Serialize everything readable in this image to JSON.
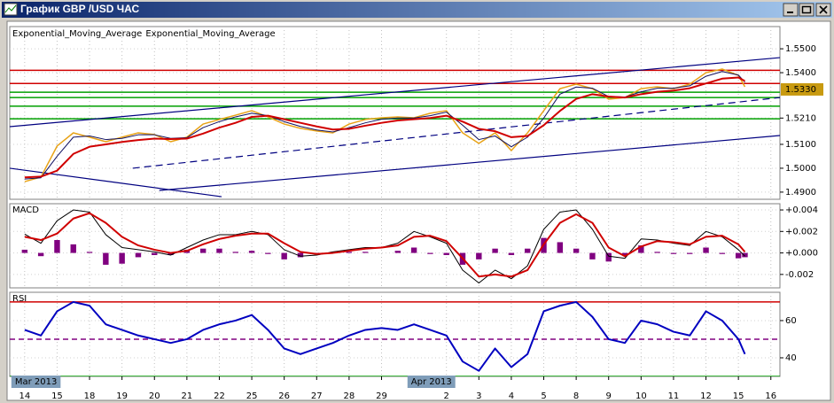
{
  "window": {
    "title": "График GBP /USD ЧАС"
  },
  "chart_data": [
    {
      "type": "line",
      "xlim": [
        -0.46,
        23.28
      ],
      "ylim": [
        1.487,
        1.5593
      ],
      "yticks": [
        {
          "value": 1.55,
          "label": "1.5500"
        },
        {
          "value": 1.54,
          "label": "1.5400"
        },
        {
          "value": 1.521,
          "label": "1.5210"
        },
        {
          "value": 1.51,
          "label": "1.5100"
        },
        {
          "value": 1.5,
          "label": "1.5000"
        },
        {
          "value": 1.49,
          "label": "1.4900"
        }
      ],
      "grid": true,
      "current_price": {
        "value": 1.533,
        "label": "1.5330",
        "color": "#c89a10"
      },
      "levels": [
        {
          "value": 1.541,
          "color": "#d00000"
        },
        {
          "value": 1.5355,
          "color": "#d00000"
        },
        {
          "value": 1.5318,
          "color": "#00a000"
        },
        {
          "value": 1.5296,
          "color": "#00a000"
        },
        {
          "value": 1.526,
          "color": "#00a000"
        },
        {
          "value": 1.5207,
          "color": "#00a000"
        }
      ],
      "trendlines": [
        {
          "x": [
            -0.46,
            23.28
          ],
          "y": [
            1.5174,
            1.5463
          ],
          "color": "#000080"
        },
        {
          "x": [
            4.15,
            23.28
          ],
          "y": [
            1.4907,
            1.5137
          ],
          "color": "#000080"
        },
        {
          "x": [
            -0.46,
            6.07
          ],
          "y": [
            1.5,
            1.4881
          ],
          "color": "#000080"
        },
        {
          "x": [
            3.33,
            23.28
          ],
          "y": [
            1.5,
            1.5296
          ],
          "color": "#000080",
          "dash": true
        }
      ],
      "x": [
        0,
        0.5,
        1,
        1.5,
        2,
        2.5,
        3,
        3.5,
        4,
        4.5,
        5,
        5.5,
        6,
        6.5,
        7,
        7.5,
        8,
        8.5,
        9,
        9.5,
        10,
        10.5,
        11,
        11.5,
        12,
        12.5,
        13,
        13.5,
        14,
        14.5,
        15,
        15.5,
        16,
        16.5,
        17,
        17.5,
        18,
        18.5,
        19,
        19.5,
        20,
        20.5,
        21,
        21.5,
        22,
        22.2
      ],
      "series": [
        {
          "color": "#e8a317",
          "width": 1.5,
          "values": [
            1.4944,
            1.4963,
            1.5093,
            1.5148,
            1.513,
            1.5111,
            1.513,
            1.5148,
            1.5141,
            1.5111,
            1.513,
            1.5185,
            1.5204,
            1.5222,
            1.5241,
            1.5215,
            1.5185,
            1.5167,
            1.5156,
            1.5148,
            1.5185,
            1.5204,
            1.5211,
            1.5215,
            1.5211,
            1.523,
            1.5241,
            1.5148,
            1.5104,
            1.5148,
            1.5074,
            1.5148,
            1.5241,
            1.5333,
            1.5352,
            1.5333,
            1.5289,
            1.5296,
            1.5333,
            1.5341,
            1.5333,
            1.5352,
            1.54,
            1.5415,
            1.5389,
            1.5341
          ]
        },
        {
          "name": "Exponential_Moving_Average",
          "color": "#101060",
          "width": 1,
          "values": [
            1.4955,
            1.496,
            1.505,
            1.513,
            1.5135,
            1.512,
            1.5125,
            1.514,
            1.514,
            1.5125,
            1.5128,
            1.517,
            1.5195,
            1.5215,
            1.523,
            1.522,
            1.5195,
            1.5175,
            1.516,
            1.5152,
            1.517,
            1.519,
            1.5205,
            1.521,
            1.521,
            1.522,
            1.5235,
            1.518,
            1.512,
            1.5135,
            1.509,
            1.513,
            1.521,
            1.531,
            1.534,
            1.5335,
            1.53,
            1.5298,
            1.532,
            1.5335,
            1.5335,
            1.5345,
            1.5385,
            1.5405,
            1.539,
            1.536
          ]
        },
        {
          "name": "Exponential_Moving_Average",
          "color": "#d00000",
          "width": 2,
          "values": [
            1.4962,
            1.4965,
            1.499,
            1.506,
            1.509,
            1.51,
            1.511,
            1.5118,
            1.5124,
            1.5122,
            1.5124,
            1.5145,
            1.517,
            1.519,
            1.5215,
            1.522,
            1.5205,
            1.519,
            1.5175,
            1.5162,
            1.5165,
            1.5178,
            1.519,
            1.52,
            1.5205,
            1.521,
            1.522,
            1.5195,
            1.5165,
            1.5155,
            1.513,
            1.5135,
            1.518,
            1.524,
            1.529,
            1.531,
            1.53,
            1.5296,
            1.531,
            1.532,
            1.5325,
            1.5335,
            1.5355,
            1.5375,
            1.538,
            1.5365
          ]
        }
      ]
    },
    {
      "type": "line",
      "title": "MACD",
      "xlim": [
        -0.46,
        23.28
      ],
      "ylim": [
        -0.00325,
        0.00458
      ],
      "yticks": [
        {
          "value": 0.004,
          "label": "+0.004"
        },
        {
          "value": 0.002,
          "label": "+0.002"
        },
        {
          "value": 0,
          "label": "+0.000"
        },
        {
          "value": -0.002,
          "label": "-0.002"
        }
      ],
      "grid": true,
      "x": [
        0,
        0.5,
        1,
        1.5,
        2,
        2.5,
        3,
        3.5,
        4,
        4.5,
        5,
        5.5,
        6,
        6.5,
        7,
        7.5,
        8,
        8.5,
        9,
        9.5,
        10,
        10.5,
        11,
        11.5,
        12,
        12.5,
        13,
        13.5,
        14,
        14.5,
        15,
        15.5,
        16,
        16.5,
        17,
        17.5,
        18,
        18.5,
        19,
        19.5,
        20,
        20.5,
        21,
        21.5,
        22,
        22.2
      ],
      "series": [
        {
          "style": "histogram",
          "color": "#800080",
          "values": [
            0.0003,
            -0.0003,
            0.0012,
            0.0008,
            0.0001,
            -0.0011,
            -0.001,
            -0.0004,
            -0.0002,
            -0.0002,
            0.0003,
            0.0004,
            0.0004,
            0.0001,
            0.0002,
            -0.0001,
            -0.0006,
            -0.0004,
            -0.0001,
            0.0001,
            0.0001,
            0.0001,
            0.0,
            0.0002,
            0.0005,
            -0.0001,
            -0.0002,
            -0.0011,
            -0.0006,
            0.0004,
            -0.0002,
            0.0004,
            0.0014,
            0.001,
            0.0004,
            -0.0006,
            -0.0008,
            -0.0002,
            0.0007,
            0.0001,
            -0.0001,
            -0.0001,
            0.0005,
            -0.0001,
            -0.0005,
            -0.0004
          ]
        },
        {
          "color": "#000000",
          "width": 1,
          "values": [
            0.00175,
            0.0009,
            0.003,
            0.004,
            0.0038,
            0.0017,
            0.0005,
            0.0003,
            0.0001,
            -0.0002,
            0.0005,
            0.0012,
            0.0017,
            0.0017,
            0.002,
            0.0017,
            0.0003,
            -0.0003,
            -0.0002,
            0.0001,
            0.0003,
            0.0005,
            0.0005,
            0.0009,
            0.002,
            0.0015,
            0.0009,
            -0.0016,
            -0.0028,
            -0.0016,
            -0.0024,
            -0.0012,
            0.0022,
            0.0038,
            0.004,
            0.0022,
            -0.0003,
            -0.0005,
            0.0013,
            0.0012,
            0.0009,
            0.0007,
            0.002,
            0.0015,
            0.0003,
            -0.0003
          ]
        },
        {
          "color": "#d00000",
          "width": 2,
          "values": [
            0.0015,
            0.0012,
            0.0018,
            0.0032,
            0.0037,
            0.0028,
            0.0015,
            0.0007,
            0.0003,
            0.0,
            0.0002,
            0.0008,
            0.0013,
            0.0016,
            0.0018,
            0.0018,
            0.0009,
            0.0001,
            -0.0001,
            0.0,
            0.0002,
            0.0004,
            0.0005,
            0.0007,
            0.0015,
            0.0016,
            0.0011,
            -0.0005,
            -0.0022,
            -0.002,
            -0.0022,
            -0.0016,
            0.0008,
            0.0028,
            0.0036,
            0.0028,
            0.0005,
            -0.0003,
            0.0006,
            0.0011,
            0.001,
            0.0008,
            0.0015,
            0.0016,
            0.0008,
            0.0001
          ]
        }
      ]
    },
    {
      "type": "line",
      "title": "RSI",
      "xlim": [
        -0.46,
        23.28
      ],
      "ylim": [
        30,
        75.2
      ],
      "yticks": [
        60,
        40
      ],
      "grid": true,
      "levels": [
        {
          "value": 70,
          "color": "#d00000"
        },
        {
          "value": 50,
          "color": "#800080",
          "dash": true
        },
        {
          "value": 30,
          "color": "#00a000"
        }
      ],
      "xticks": [
        {
          "value": 0,
          "label": "14"
        },
        {
          "value": 1,
          "label": "15"
        },
        {
          "value": 2,
          "label": "18"
        },
        {
          "value": 3,
          "label": "19"
        },
        {
          "value": 4,
          "label": "20"
        },
        {
          "value": 5,
          "label": "21"
        },
        {
          "value": 6,
          "label": "22"
        },
        {
          "value": 7,
          "label": "25"
        },
        {
          "value": 8,
          "label": "26"
        },
        {
          "value": 9,
          "label": "27"
        },
        {
          "value": 10,
          "label": "28"
        },
        {
          "value": 11,
          "label": "29"
        },
        {
          "value": 13,
          "label": "2"
        },
        {
          "value": 14,
          "label": "3"
        },
        {
          "value": 15,
          "label": "4"
        },
        {
          "value": 16,
          "label": "5"
        },
        {
          "value": 17,
          "label": "8"
        },
        {
          "value": 18,
          "label": "9"
        },
        {
          "value": 19,
          "label": "10"
        },
        {
          "value": 20,
          "label": "11"
        },
        {
          "value": 21,
          "label": "12"
        },
        {
          "value": 22,
          "label": "15"
        },
        {
          "value": 23,
          "label": "16"
        }
      ],
      "period_labels": [
        {
          "x": -0.41,
          "label": "Mar 2013"
        },
        {
          "x": 11.8,
          "label": "Apr 2013"
        }
      ],
      "x": [
        0,
        0.5,
        1,
        1.5,
        2,
        2.5,
        3,
        3.5,
        4,
        4.5,
        5,
        5.5,
        6,
        6.5,
        7,
        7.5,
        8,
        8.5,
        9,
        9.5,
        10,
        10.5,
        11,
        11.5,
        12,
        12.5,
        13,
        13.5,
        14,
        14.5,
        15,
        15.5,
        16,
        16.5,
        17,
        17.5,
        18,
        18.5,
        19,
        19.5,
        20,
        20.5,
        21,
        21.5,
        22,
        22.2
      ],
      "series": [
        {
          "color": "#0000c0",
          "width": 2,
          "values": [
            55,
            52,
            65,
            70,
            68,
            58,
            55,
            52,
            50,
            48,
            50,
            55,
            58,
            60,
            63,
            55,
            45,
            42,
            45,
            48,
            52,
            55,
            56,
            55,
            58,
            55,
            52,
            38,
            33,
            45,
            35,
            42,
            65,
            68,
            70,
            62,
            50,
            48,
            60,
            58,
            54,
            52,
            65,
            60,
            50,
            42
          ]
        }
      ]
    }
  ]
}
